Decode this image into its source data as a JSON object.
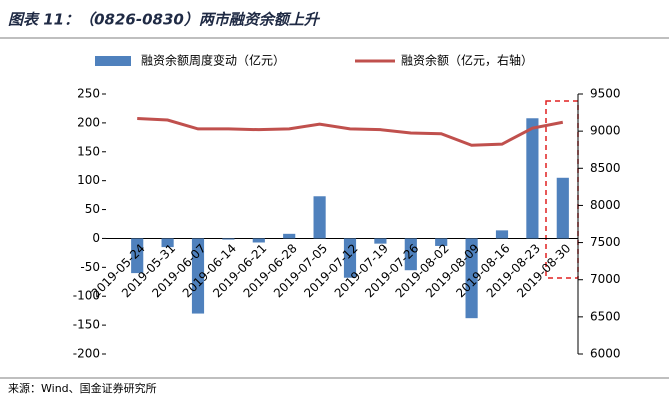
{
  "title": "图表 11：（0826-0830）两市融资余额上升",
  "source": "来源：Wind、国金证券研究所",
  "chart_data": {
    "type": "bar-line",
    "categories": [
      "2019-05-24",
      "2019-05-31",
      "2019-06-07",
      "2019-06-14",
      "2019-06-21",
      "2019-06-28",
      "2019-07-05",
      "2019-07-12",
      "2019-07-19",
      "2019-07-26",
      "2019-08-02",
      "2019-08-09",
      "2019-08-16",
      "2019-08-23",
      "2019-08-30"
    ],
    "series": [
      {
        "name": "融资余额周度变动（亿元）",
        "type": "bar",
        "color": "#4f81bd",
        "values": [
          -60,
          -15,
          -130,
          -2,
          -7,
          8,
          73,
          -68,
          -9,
          -55,
          -13,
          -138,
          14,
          208,
          105
        ]
      },
      {
        "name": "融资余额（亿元，右轴）",
        "type": "line",
        "axis": "y2",
        "color": "#c0504d",
        "values": [
          9170,
          9150,
          9030,
          9030,
          9020,
          9030,
          9095,
          9030,
          9020,
          8975,
          8965,
          8810,
          8825,
          9040,
          9120
        ]
      }
    ],
    "ylim": [
      -200,
      250
    ],
    "yticks": [
      -200,
      -150,
      -100,
      -50,
      0,
      50,
      100,
      150,
      200,
      250
    ],
    "y2lim": [
      6000,
      9500
    ],
    "y2ticks": [
      6000,
      6500,
      7000,
      7500,
      8000,
      8500,
      9000,
      9500
    ],
    "legend": "top"
  }
}
